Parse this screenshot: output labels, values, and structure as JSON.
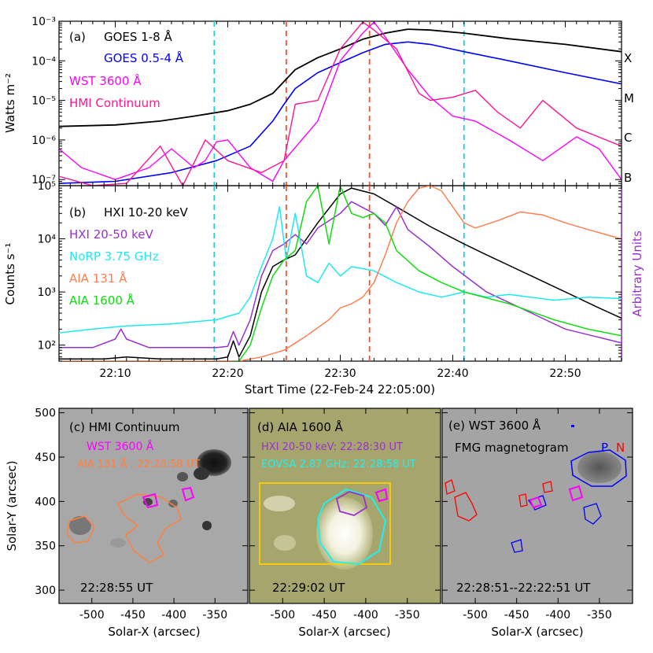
{
  "chart_data": [
    {
      "panel": "(a)",
      "type": "line",
      "y_scale": "log",
      "ylim": [
        7e-08,
        0.001
      ],
      "xlim_min": [
        0,
        50
      ],
      "ylabel": "Watts m⁻²",
      "ytick_labels": [
        "10⁻³",
        "10⁻⁴",
        "10⁻⁵",
        "10⁻⁶",
        "10⁻⁷"
      ],
      "class_labels": [
        "X",
        "M",
        "C",
        "B"
      ],
      "legend": [
        {
          "label": "GOES 1-8 Å",
          "color": "#000000"
        },
        {
          "label": "GOES 0.5-4 Å",
          "color": "#0000ff"
        },
        {
          "label": "WST 3600 Å",
          "color": "#ff00ff"
        },
        {
          "label": "HMI Continuum",
          "color": "#ff1493"
        }
      ],
      "vlines": [
        {
          "t": 13.8,
          "color": "#20d0d0"
        },
        {
          "t": 20.2,
          "color": "#ff5020"
        },
        {
          "t": 27.6,
          "color": "#ff5020"
        },
        {
          "t": 36.0,
          "color": "#20d0d0"
        }
      ],
      "series": [
        {
          "color": "#000000",
          "width": 1.8,
          "points": [
            [
              0,
              2.2e-06
            ],
            [
              5,
              2.4e-06
            ],
            [
              9,
              3e-06
            ],
            [
              12,
              4e-06
            ],
            [
              15,
              5.5e-06
            ],
            [
              17,
              8e-06
            ],
            [
              19,
              1.5e-05
            ],
            [
              20,
              3e-05
            ],
            [
              21,
              6e-05
            ],
            [
              23,
              0.00012
            ],
            [
              25,
              0.0002
            ],
            [
              27,
              0.00035
            ],
            [
              29,
              0.0005
            ],
            [
              31,
              0.00063
            ],
            [
              33,
              0.0006
            ],
            [
              36,
              0.0005
            ],
            [
              40,
              0.00036
            ],
            [
              45,
              0.00026
            ],
            [
              50,
              0.00017
            ]
          ]
        },
        {
          "color": "#0000ff",
          "width": 1.6,
          "points": [
            [
              0,
              8e-08
            ],
            [
              5,
              9e-08
            ],
            [
              10,
              1.5e-07
            ],
            [
              14,
              3e-07
            ],
            [
              17,
              7e-07
            ],
            [
              19,
              3e-06
            ],
            [
              20,
              8e-06
            ],
            [
              21,
              2e-05
            ],
            [
              23,
              5e-05
            ],
            [
              25,
              9e-05
            ],
            [
              27,
              0.00016
            ],
            [
              29,
              0.00026
            ],
            [
              31,
              0.0003
            ],
            [
              33,
              0.00026
            ],
            [
              36,
              0.00017
            ],
            [
              40,
              0.0001
            ],
            [
              45,
              5e-05
            ],
            [
              50,
              2.6e-05
            ]
          ]
        },
        {
          "color": "#ff00ff",
          "width": 1.4,
          "points": [
            [
              0,
              6e-07
            ],
            [
              2,
              2e-07
            ],
            [
              5,
              1e-07
            ],
            [
              8,
              2e-07
            ],
            [
              10,
              6e-07
            ],
            [
              12,
              2e-07
            ],
            [
              13,
              3e-07
            ],
            [
              14,
              9e-07
            ],
            [
              15,
              1e-06
            ],
            [
              17,
              2e-07
            ],
            [
              19,
              9e-08
            ],
            [
              20,
              3e-07
            ],
            [
              23,
              3e-06
            ],
            [
              25,
              0.0001
            ],
            [
              27,
              0.0005
            ],
            [
              28,
              0.00095
            ],
            [
              29,
              0.0004
            ],
            [
              31,
              6e-05
            ],
            [
              33,
              1.2e-05
            ],
            [
              35,
              4e-06
            ],
            [
              37,
              3e-06
            ],
            [
              40,
              1e-06
            ],
            [
              43,
              3e-07
            ],
            [
              46,
              1.2e-06
            ],
            [
              48,
              6e-07
            ],
            [
              50,
              1e-07
            ]
          ]
        },
        {
          "color": "#ff1493",
          "width": 1.4,
          "points": [
            [
              0,
              1.2e-07
            ],
            [
              3,
              7e-08
            ],
            [
              6,
              8e-08
            ],
            [
              9,
              7e-07
            ],
            [
              11,
              7e-08
            ],
            [
              13,
              1e-06
            ],
            [
              15,
              3e-07
            ],
            [
              18,
              1.5e-07
            ],
            [
              20,
              3e-07
            ],
            [
              21,
              8e-06
            ],
            [
              23,
              1e-05
            ],
            [
              25,
              0.0002
            ],
            [
              27,
              0.00095
            ],
            [
              28,
              0.0006
            ],
            [
              30,
              0.0002
            ],
            [
              32,
              1.5e-05
            ],
            [
              33,
              1e-05
            ],
            [
              35,
              1.2e-05
            ],
            [
              37,
              1.8e-05
            ],
            [
              39,
              5e-06
            ],
            [
              41,
              2e-06
            ],
            [
              43,
              1e-05
            ],
            [
              46,
              2e-06
            ],
            [
              50,
              7e-07
            ]
          ]
        }
      ]
    },
    {
      "panel": "(b)",
      "type": "line",
      "y_scale": "log",
      "ylim": [
        50,
        100000.0
      ],
      "ylabel": "Counts s⁻¹",
      "ylabel_right": "Arbitrary Units",
      "ytick_labels": [
        "10⁵",
        "10⁴",
        "10³",
        "10²"
      ],
      "xlabel": "Start Time (22-Feb-24 22:05:00)",
      "xtick_labels": [
        "22:10",
        "22:20",
        "22:30",
        "22:40",
        "22:50"
      ],
      "xtick_minutes": [
        5,
        15,
        25,
        35,
        45
      ],
      "legend": [
        {
          "label": "HXI 10-20 keV",
          "color": "#000000"
        },
        {
          "label": "HXI 20-50 keV",
          "color": "#9932cc"
        },
        {
          "label": "NoRP 3.75 GHz",
          "color": "#20e8f0"
        },
        {
          "label": "AIA 131 Å",
          "color": "#ff7f50"
        },
        {
          "label": "AIA 1600 Å",
          "color": "#10dd10"
        }
      ],
      "series": [
        {
          "color": "#000000",
          "width": 1.5,
          "points": [
            [
              0,
              55
            ],
            [
              4,
              55
            ],
            [
              6,
              60
            ],
            [
              9,
              55
            ],
            [
              12,
              55
            ],
            [
              14,
              55
            ],
            [
              15,
              60
            ],
            [
              15.5,
              120
            ],
            [
              16,
              60
            ],
            [
              17,
              150
            ],
            [
              18,
              1000
            ],
            [
              19,
              3000
            ],
            [
              20,
              4000
            ],
            [
              21,
              5000
            ],
            [
              23,
              20000.0
            ],
            [
              25,
              70000.0
            ],
            [
              26,
              90000.0
            ],
            [
              28,
              70000.0
            ],
            [
              30,
              40000.0
            ],
            [
              33,
              17000.0
            ],
            [
              36,
              8000
            ],
            [
              38,
              5000
            ],
            [
              42,
              2000
            ],
            [
              45,
              1000
            ],
            [
              48,
              500
            ],
            [
              50,
              320
            ]
          ]
        },
        {
          "color": "#9932cc",
          "width": 1.5,
          "points": [
            [
              0,
              90
            ],
            [
              3,
              90
            ],
            [
              5,
              130
            ],
            [
              5.5,
              200
            ],
            [
              6,
              130
            ],
            [
              8,
              90
            ],
            [
              11,
              90
            ],
            [
              14,
              90
            ],
            [
              15,
              95
            ],
            [
              15.5,
              180
            ],
            [
              16,
              100
            ],
            [
              17,
              300
            ],
            [
              18,
              2000
            ],
            [
              19,
              6000
            ],
            [
              20,
              8000
            ],
            [
              21,
              12000.0
            ],
            [
              22,
              8000
            ],
            [
              23,
              16000.0
            ],
            [
              25,
              30000.0
            ],
            [
              26,
              50000.0
            ],
            [
              28,
              30000.0
            ],
            [
              29,
              18000.0
            ],
            [
              30,
              40000.0
            ],
            [
              31,
              15000.0
            ],
            [
              33,
              7000
            ],
            [
              35,
              3000
            ],
            [
              38,
              1000
            ],
            [
              42,
              400
            ],
            [
              45,
              200
            ],
            [
              48,
              140
            ],
            [
              50,
              110
            ]
          ]
        },
        {
          "color": "#20e8f0",
          "width": 1.5,
          "points": [
            [
              0,
              170
            ],
            [
              3,
              200
            ],
            [
              6,
              230
            ],
            [
              10,
              250
            ],
            [
              14,
              300
            ],
            [
              16,
              400
            ],
            [
              17,
              800
            ],
            [
              18,
              3000
            ],
            [
              19,
              10000.0
            ],
            [
              19.6,
              40000.0
            ],
            [
              20.2,
              4000
            ],
            [
              21,
              30000.0
            ],
            [
              21.6,
              6000
            ],
            [
              22,
              2000
            ],
            [
              23,
              1500
            ],
            [
              24,
              3500
            ],
            [
              25,
              2000
            ],
            [
              26,
              3000
            ],
            [
              28,
              2500
            ],
            [
              30,
              1500
            ],
            [
              32,
              1000
            ],
            [
              34,
              800
            ],
            [
              36,
              1000
            ],
            [
              38,
              800
            ],
            [
              40,
              900
            ],
            [
              44,
              700
            ],
            [
              47,
              800
            ],
            [
              50,
              750
            ]
          ]
        },
        {
          "color": "#ff7f50",
          "width": 1.5,
          "points": [
            [
              0,
              50
            ],
            [
              12,
              50
            ],
            [
              16,
              50
            ],
            [
              18,
              60
            ],
            [
              20,
              80
            ],
            [
              22,
              150
            ],
            [
              24,
              300
            ],
            [
              25,
              500
            ],
            [
              26,
              600
            ],
            [
              27,
              800
            ],
            [
              28,
              1500
            ],
            [
              29,
              5000
            ],
            [
              30,
              20000.0
            ],
            [
              31,
              50000.0
            ],
            [
              32,
              90000.0
            ],
            [
              33,
              100000.0
            ],
            [
              34,
              80000.0
            ],
            [
              35,
              40000.0
            ],
            [
              36,
              20000.0
            ],
            [
              37,
              16000.0
            ],
            [
              39,
              22000.0
            ],
            [
              41,
              32000.0
            ],
            [
              43,
              28000.0
            ],
            [
              45,
              20000.0
            ],
            [
              47,
              15000.0
            ],
            [
              50,
              10000.0
            ]
          ]
        },
        {
          "color": "#10dd10",
          "width": 1.5,
          "points": [
            [
              0,
              45
            ],
            [
              13,
              45
            ],
            [
              16,
              50
            ],
            [
              17,
              100
            ],
            [
              18,
              500
            ],
            [
              19,
              2000
            ],
            [
              20,
              4000
            ],
            [
              21,
              6000
            ],
            [
              22,
              50000.0
            ],
            [
              23,
              100000.0
            ],
            [
              24,
              8000
            ],
            [
              25,
              100000.0
            ],
            [
              26,
              30000.0
            ],
            [
              27,
              25000.0
            ],
            [
              28,
              30000.0
            ],
            [
              29,
              20000.0
            ],
            [
              30,
              6000
            ],
            [
              32,
              2500
            ],
            [
              34,
              1500
            ],
            [
              36,
              1000
            ],
            [
              40,
              600
            ],
            [
              44,
              300
            ],
            [
              47,
              200
            ],
            [
              50,
              150
            ]
          ]
        }
      ]
    },
    {
      "panel": "(c)",
      "type": "image",
      "title": "(c) HMI Continuum",
      "labels": [
        "WST 3600 Å",
        "AIA 131 Å : 22:28:58 UT"
      ],
      "label_colors": [
        "#ff00ff",
        "#ff8040"
      ],
      "timestamp": "22:28:55 UT",
      "background": "#a8a8a8"
    },
    {
      "panel": "(d)",
      "type": "image",
      "title": "(d) AIA 1600 Å",
      "labels": [
        "HXI 20-50 keV: 22:28:30 UT",
        "EOVSA 2.87 GHz: 22:28:58 UT"
      ],
      "label_colors": [
        "#9932cc",
        "#20f0f0"
      ],
      "timestamp": "22:29:02 UT",
      "background": "#a6a56e"
    },
    {
      "panel": "(e)",
      "type": "image",
      "title": "(e) WST 3600 Å",
      "labels": [
        "FMG magnetogram",
        "P",
        "N"
      ],
      "label_colors": [
        "#000000",
        "#0000ff",
        "#ff0000"
      ],
      "timestamp": "22:28:51--22:22:51 UT",
      "background": "#a4a4a4"
    }
  ],
  "image_axes": {
    "ylabel": "Solar-Y (arcsec)",
    "xlabel": "Solar-X (arcsec)",
    "yticks": [
      "500",
      "450",
      "400",
      "350",
      "300"
    ],
    "xticks": [
      "-500",
      "-450",
      "-400",
      "-350"
    ]
  }
}
